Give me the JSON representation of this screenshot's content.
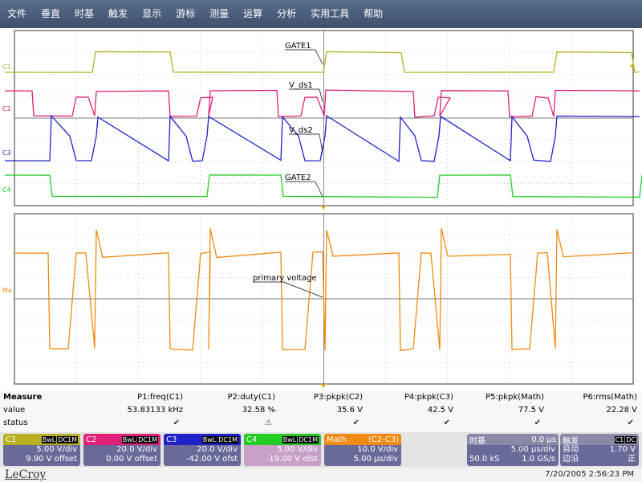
{
  "menu": [
    "文件",
    "垂直",
    "时基",
    "触发",
    "显示",
    "游标",
    "测量",
    "运算",
    "分析",
    "实用工具",
    "帮助"
  ],
  "traces": {
    "c1_label": "C1",
    "c2_label": "C2",
    "c3_label": "C3",
    "c4_label": "C4",
    "ma_label": "Ma",
    "gate1": "GATE1",
    "vds1": "V_ds1",
    "vds2": "V_ds2",
    "gate2": "GATE2",
    "primary": "primary voltage"
  },
  "measure": {
    "title": "Measure",
    "row_value": "value",
    "row_status": "status",
    "params": [
      {
        "name": "P1:freq(C1)",
        "value": "53.83133 kHz",
        "status": "check"
      },
      {
        "name": "P2:duty(C1)",
        "value": "32.58 %",
        "status": "warning"
      },
      {
        "name": "P3:pkpk(C2)",
        "value": "35.6 V",
        "status": "check"
      },
      {
        "name": "P4:pkpk(C3)",
        "value": "42.5 V",
        "status": "check"
      },
      {
        "name": "P5:pkpk(Math)",
        "value": "77.5 V",
        "status": "check"
      },
      {
        "name": "P6:rms(Math)",
        "value": "22.28 V",
        "status": "check"
      }
    ]
  },
  "channels": [
    {
      "id": "C1",
      "color": "#b8b020",
      "bw": "BwL",
      "cpl": "DC1M",
      "line1": "5.00 V/div",
      "line2": "9.90 V offset"
    },
    {
      "id": "C2",
      "color": "#e0207a",
      "bw": "BwL",
      "cpl": "DC1M",
      "line1": "20.0 V/div",
      "line2": "0.00 V offset"
    },
    {
      "id": "C3",
      "color": "#1f23c8",
      "bw": "BwL",
      "cpl": "DC1M",
      "line1": "20.0 V/div",
      "line2": "-42.00 V ofst"
    },
    {
      "id": "C4",
      "color": "#22cc22",
      "bw": "BwL",
      "cpl": "DC1M",
      "line1": "5.00 V/div",
      "line2": "-19.00 V ofst"
    }
  ],
  "math": {
    "id": "Math",
    "formula": "(C2-C3)",
    "color": "#f08a10",
    "line1": "10.0 V/div",
    "line2": "5.00 µs/div"
  },
  "timebase": {
    "title": "时基",
    "delay": "0.0 µs",
    "tdiv": "5.00 µs/div",
    "samples": "50.0 kS",
    "rate": "1.0 GS/s"
  },
  "trigger": {
    "title": "触发",
    "src": "C1",
    "cpl": "DC",
    "mode": "自动",
    "level": "1.70 V",
    "type": "边沿",
    "slope": "正"
  },
  "footer": {
    "logo": "LeCroy",
    "datetime": "7/20/2005 2:56:23 PM"
  },
  "colors": {
    "c1": "#b8b020",
    "c2": "#e0207a",
    "c3": "#1f23c8",
    "c4": "#22cc22",
    "math": "#f08a10"
  }
}
